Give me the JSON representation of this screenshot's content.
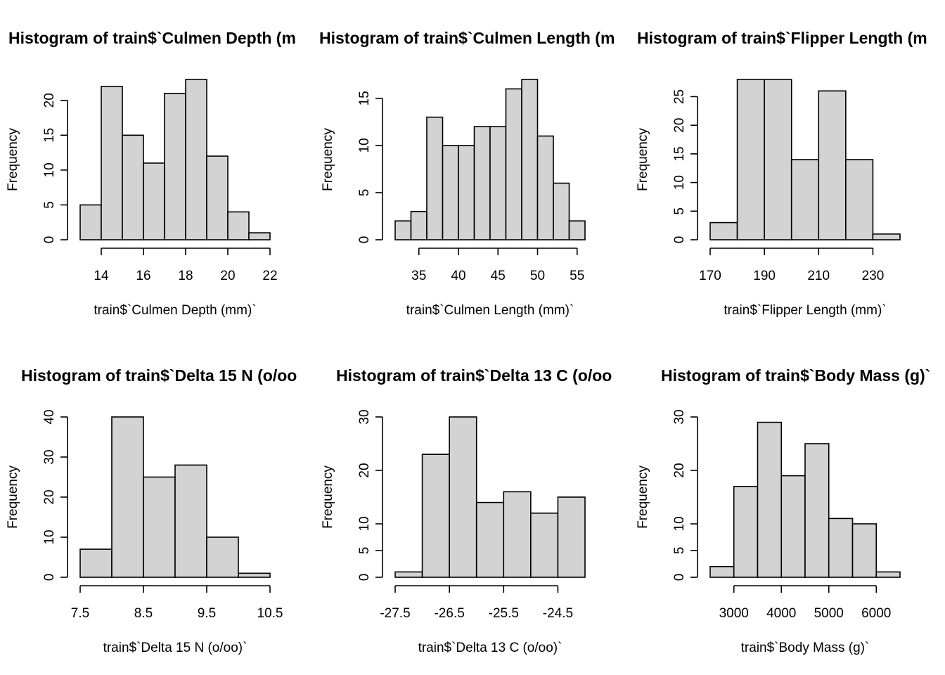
{
  "chart_data": [
    {
      "type": "bar",
      "title": "Histogram of train$`Culmen Depth (m",
      "xlabel": "train$`Culmen Depth (mm)`",
      "ylabel": "Frequency",
      "breaks": [
        13,
        14,
        15,
        16,
        17,
        18,
        19,
        20,
        21,
        22
      ],
      "values": [
        5,
        22,
        15,
        11,
        21,
        23,
        12,
        4,
        1
      ],
      "xticks": [
        14,
        16,
        18,
        20,
        22
      ],
      "xtick_labels": [
        "14",
        "16",
        "18",
        "20",
        "22"
      ],
      "yticks": [
        0,
        5,
        10,
        15,
        20
      ],
      "ytick_labels": [
        "0",
        "5",
        "10",
        "15",
        "20"
      ]
    },
    {
      "type": "bar",
      "title": "Histogram of train$`Culmen Length (m",
      "xlabel": "train$`Culmen Length (mm)`",
      "ylabel": "Frequency",
      "breaks": [
        32,
        34,
        36,
        38,
        40,
        42,
        44,
        46,
        48,
        50,
        52,
        54,
        56
      ],
      "values": [
        2,
        3,
        13,
        10,
        10,
        12,
        12,
        16,
        17,
        11,
        6,
        2
      ],
      "xticks": [
        35,
        40,
        45,
        50,
        55
      ],
      "xtick_labels": [
        "35",
        "40",
        "45",
        "50",
        "55"
      ],
      "yticks": [
        0,
        5,
        10,
        15
      ],
      "ytick_labels": [
        "0",
        "5",
        "10",
        "15"
      ]
    },
    {
      "type": "bar",
      "title": "Histogram of train$`Flipper Length (m",
      "xlabel": "train$`Flipper Length (mm)`",
      "ylabel": "Frequency",
      "breaks": [
        170,
        180,
        190,
        200,
        210,
        220,
        230,
        240
      ],
      "values": [
        3,
        28,
        28,
        14,
        26,
        14,
        1
      ],
      "xticks": [
        170,
        190,
        210,
        230
      ],
      "xtick_labels": [
        "170",
        "190",
        "210",
        "230"
      ],
      "yticks": [
        0,
        5,
        10,
        15,
        20,
        25
      ],
      "ytick_labels": [
        "0",
        "5",
        "10",
        "15",
        "20",
        "25"
      ]
    },
    {
      "type": "bar",
      "title": "Histogram of train$`Delta 15 N (o/oo",
      "xlabel": "train$`Delta 15 N (o/oo)`",
      "ylabel": "Frequency",
      "breaks": [
        7.5,
        8.0,
        8.5,
        9.0,
        9.5,
        10.0,
        10.5
      ],
      "values": [
        7,
        40,
        25,
        28,
        10,
        1
      ],
      "xticks": [
        7.5,
        8.5,
        9.5,
        10.5
      ],
      "xtick_labels": [
        "7.5",
        "8.5",
        "9.5",
        "10.5"
      ],
      "yticks": [
        0,
        10,
        20,
        30,
        40
      ],
      "ytick_labels": [
        "0",
        "10",
        "20",
        "30",
        "40"
      ]
    },
    {
      "type": "bar",
      "title": "Histogram of train$`Delta 13 C (o/oo",
      "xlabel": "train$`Delta 13 C (o/oo)`",
      "ylabel": "Frequency",
      "breaks": [
        -27.5,
        -27.0,
        -26.5,
        -26.0,
        -25.5,
        -25.0,
        -24.5,
        -24.0
      ],
      "values": [
        1,
        23,
        30,
        14,
        16,
        12,
        15
      ],
      "xticks": [
        -27.5,
        -26.5,
        -25.5,
        -24.5
      ],
      "xtick_labels": [
        "-27.5",
        "-26.5",
        "-25.5",
        "-24.5"
      ],
      "yticks": [
        0,
        5,
        10,
        20,
        30
      ],
      "ytick_labels": [
        "0",
        "5",
        "10",
        "20",
        "30"
      ]
    },
    {
      "type": "bar",
      "title": "Histogram of train$`Body Mass (g)`",
      "xlabel": "train$`Body Mass (g)`",
      "ylabel": "Frequency",
      "breaks": [
        2500,
        3000,
        3500,
        4000,
        4500,
        5000,
        5500,
        6000,
        6500
      ],
      "values": [
        2,
        17,
        29,
        19,
        25,
        11,
        10,
        1
      ],
      "xticks": [
        3000,
        4000,
        5000,
        6000
      ],
      "xtick_labels": [
        "3000",
        "4000",
        "5000",
        "6000"
      ],
      "yticks": [
        0,
        5,
        10,
        20,
        30
      ],
      "ytick_labels": [
        "0",
        "5",
        "10",
        "20",
        "30"
      ]
    }
  ]
}
